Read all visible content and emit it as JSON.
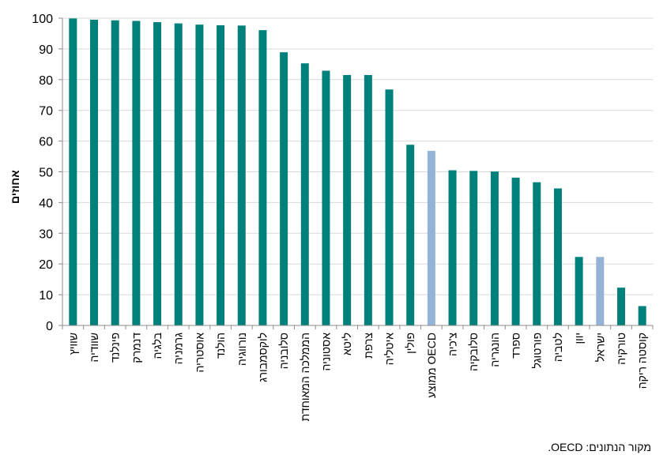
{
  "chart_data": {
    "type": "bar",
    "ylabel": "אחוזים",
    "ylim": [
      0,
      100
    ],
    "yticks": [
      0,
      10,
      20,
      30,
      40,
      50,
      60,
      70,
      80,
      90,
      100
    ],
    "grid": true,
    "categories": [
      "שוויץ",
      "שוודיה",
      "פינלנד",
      "דנמרק",
      "בלגיה",
      "גרמניה",
      "אוסטריה",
      "הולנד",
      "נורווגיה",
      "לוקסמבורג",
      "סלובניה",
      "הממלכה המאוחדת",
      "אסטוניה",
      "ליטא",
      "צרפת",
      "איטליה",
      "פולין",
      "ממוצע OECD",
      "צ'כיה",
      "סלובקיה",
      "הונגריה",
      "ספרד",
      "פורטוגל",
      "לטביה",
      "יוון",
      "ישראל",
      "טורקיה",
      "קוסטה ריקה"
    ],
    "values": [
      99.9,
      99.5,
      99.3,
      99.1,
      98.7,
      98.3,
      97.9,
      97.7,
      97.6,
      96.1,
      88.9,
      85.3,
      82.9,
      81.5,
      81.5,
      76.8,
      58.8,
      56.8,
      50.5,
      50.3,
      50.1,
      48.1,
      46.6,
      44.6,
      22.3,
      22.3,
      12.3,
      6.3
    ],
    "highlight": [
      "ממוצע OECD",
      "ישראל"
    ],
    "colors": {
      "bar": "#00807B",
      "highlight": "#95B3D7",
      "grid": "#D9D9D9",
      "axis": "#8C8C8C"
    }
  },
  "source_note": "מקור הנתונים: OECD."
}
